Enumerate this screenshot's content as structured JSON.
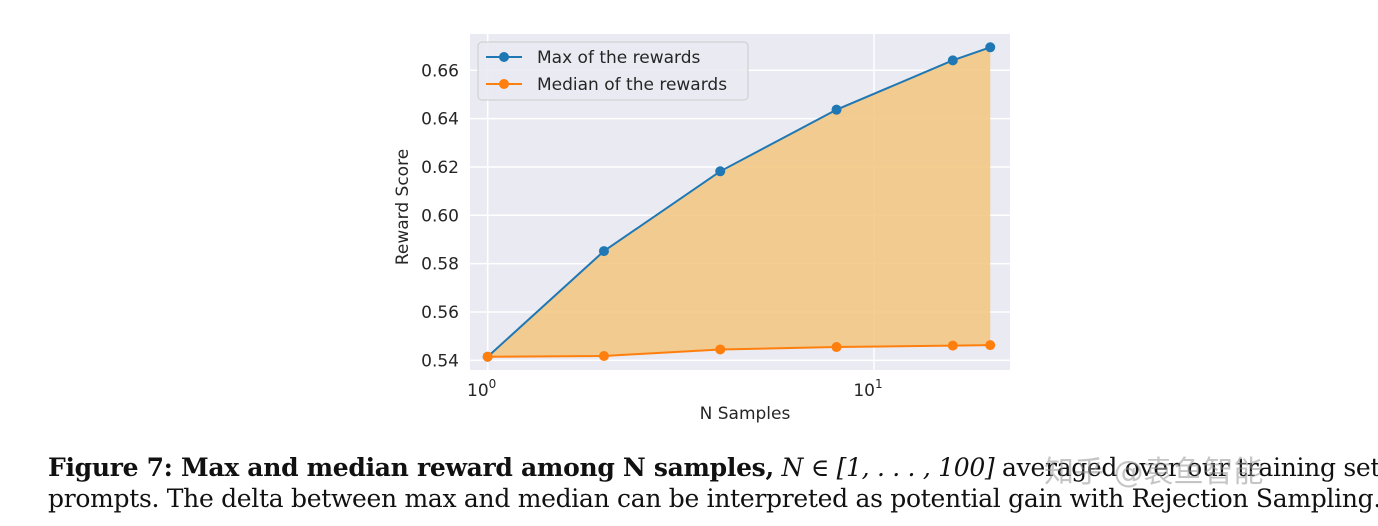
{
  "chart_data": {
    "type": "line",
    "xscale": "log",
    "x": [
      1,
      2,
      4,
      8,
      16,
      20
    ],
    "series": [
      {
        "name": "Max of the rewards",
        "values": [
          0.5415,
          0.5852,
          0.6182,
          0.6437,
          0.6641,
          0.6695
        ],
        "color": "#1f77b4"
      },
      {
        "name": "Median of the rewards",
        "values": [
          0.5415,
          0.5418,
          0.5445,
          0.5455,
          0.5461,
          0.5463
        ],
        "color": "#ff7f0e"
      }
    ],
    "fill_between": {
      "color": "#f2c67e"
    },
    "xlabel": "N Samples",
    "ylabel": "Reward Score",
    "xticks": [
      {
        "value": 1,
        "base": "10",
        "exp": "0"
      },
      {
        "value": 10,
        "base": "10",
        "exp": "1"
      }
    ],
    "yticks": [
      {
        "value": 0.54,
        "label": "0.54"
      },
      {
        "value": 0.56,
        "label": "0.56"
      },
      {
        "value": 0.58,
        "label": "0.58"
      },
      {
        "value": 0.6,
        "label": "0.60"
      },
      {
        "value": 0.62,
        "label": "0.62"
      },
      {
        "value": 0.64,
        "label": "0.64"
      },
      {
        "value": 0.66,
        "label": "0.66"
      }
    ],
    "ylim": [
      0.536,
      0.675
    ],
    "grid": true,
    "legend_position": "top-left",
    "background": "#eaeaf2"
  },
  "caption": {
    "lead": "Figure 7: Max and median reward among N samples,",
    "math": "N ∈ [1, . . . , 100]",
    "rest_line1": "averaged over our training set of",
    "line2": "prompts. The delta between max and median can be interpreted as potential gain with Rejection Sampling."
  },
  "watermark": "知乎 @袁鱼智能"
}
